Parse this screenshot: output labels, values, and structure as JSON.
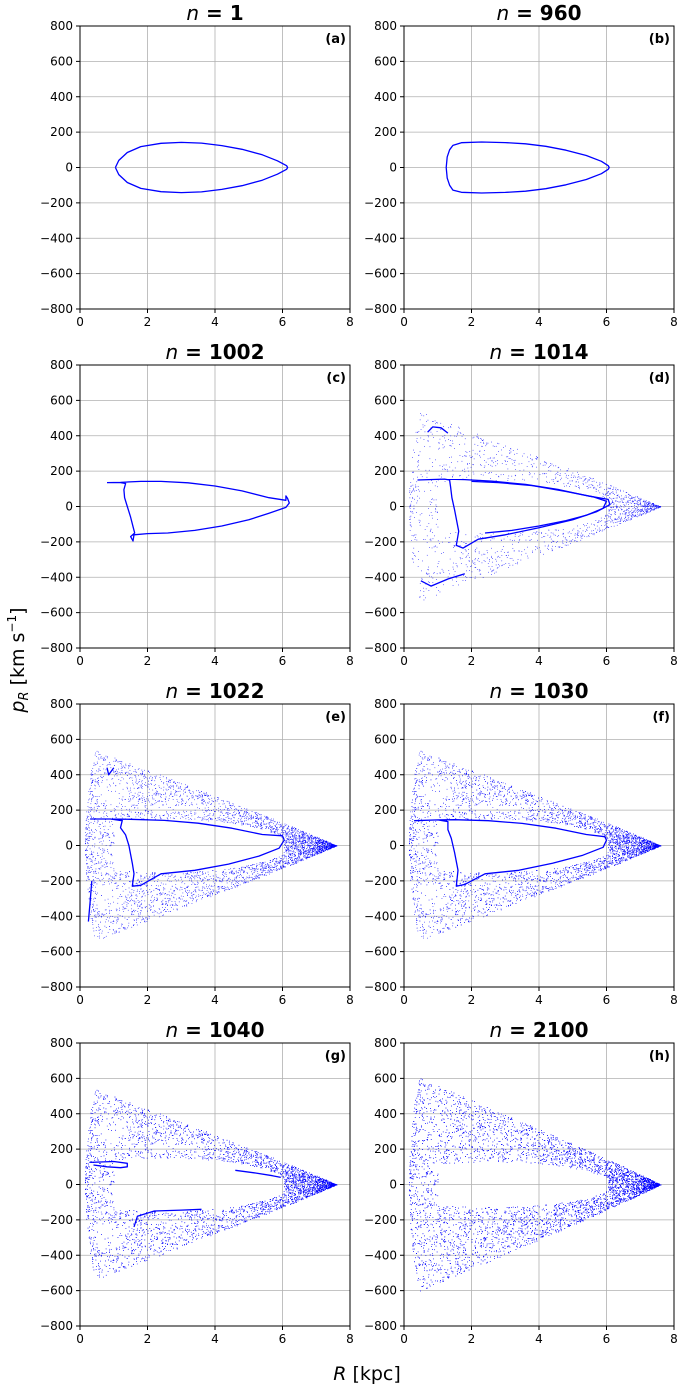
{
  "figure": {
    "xlabel_math": "R",
    "xlabel_unit": " [kpc]",
    "ylabel_math": "p",
    "ylabel_sub": "R",
    "ylabel_unit_main": " [km s",
    "ylabel_unit_sup": "−1",
    "ylabel_unit_end": "]",
    "title_var": "n",
    "title_eq": " = ",
    "line_color": "#0000ff",
    "grid_color": "#b0b0b0"
  },
  "chart_data": [
    {
      "type": "scatter",
      "tag": "(a)",
      "n": "1",
      "xlim": [
        0,
        8
      ],
      "ylim": [
        -800,
        800
      ],
      "xticks": [
        "0",
        "2",
        "4",
        "6",
        "8"
      ],
      "yticks": [
        "800",
        "600",
        "400",
        "200",
        "0",
        "−200",
        "−400",
        "−600",
        "−800"
      ],
      "grid": true,
      "curves": [
        {
          "style": "line",
          "points": [
            [
              1.05,
              0
            ],
            [
              1.15,
              40
            ],
            [
              1.4,
              85
            ],
            [
              1.8,
              118
            ],
            [
              2.4,
              137
            ],
            [
              3.0,
              142
            ],
            [
              3.6,
              138
            ],
            [
              4.2,
              124
            ],
            [
              4.8,
              103
            ],
            [
              5.4,
              72
            ],
            [
              5.85,
              38
            ],
            [
              6.12,
              10
            ],
            [
              6.15,
              0
            ],
            [
              6.12,
              -10
            ],
            [
              5.85,
              -38
            ],
            [
              5.4,
              -72
            ],
            [
              4.8,
              -103
            ],
            [
              4.2,
              -124
            ],
            [
              3.6,
              -138
            ],
            [
              3.0,
              -142
            ],
            [
              2.4,
              -137
            ],
            [
              1.8,
              -118
            ],
            [
              1.4,
              -85
            ],
            [
              1.15,
              -40
            ],
            [
              1.05,
              0
            ]
          ]
        }
      ],
      "clouds": []
    },
    {
      "type": "scatter",
      "tag": "(b)",
      "n": "960",
      "xlim": [
        0,
        8
      ],
      "ylim": [
        -800,
        800
      ],
      "xticks": [
        "0",
        "2",
        "4",
        "6",
        "8"
      ],
      "yticks": [
        "800",
        "600",
        "400",
        "200",
        "0",
        "−200",
        "−400",
        "−600",
        "−800"
      ],
      "grid": true,
      "curves": [
        {
          "style": "line",
          "points": [
            [
              1.25,
              0
            ],
            [
              1.28,
              60
            ],
            [
              1.35,
              100
            ],
            [
              1.45,
              125
            ],
            [
              1.7,
              140
            ],
            [
              2.3,
              144
            ],
            [
              3.0,
              141
            ],
            [
              3.6,
              134
            ],
            [
              4.2,
              120
            ],
            [
              4.8,
              98
            ],
            [
              5.4,
              68
            ],
            [
              5.85,
              35
            ],
            [
              6.05,
              10
            ],
            [
              6.08,
              0
            ],
            [
              6.05,
              -10
            ],
            [
              5.85,
              -35
            ],
            [
              5.4,
              -68
            ],
            [
              4.8,
              -98
            ],
            [
              4.2,
              -120
            ],
            [
              3.6,
              -134
            ],
            [
              3.0,
              -141
            ],
            [
              2.3,
              -144
            ],
            [
              1.7,
              -140
            ],
            [
              1.45,
              -128
            ],
            [
              1.35,
              -100
            ],
            [
              1.28,
              -60
            ],
            [
              1.25,
              0
            ]
          ]
        }
      ],
      "clouds": []
    },
    {
      "type": "scatter",
      "tag": "(c)",
      "n": "1002",
      "xlim": [
        0,
        8
      ],
      "ylim": [
        -800,
        800
      ],
      "xticks": [
        "0",
        "2",
        "4",
        "6",
        "8"
      ],
      "yticks": [
        "800",
        "600",
        "400",
        "200",
        "0",
        "−200",
        "−400",
        "−600",
        "−800"
      ],
      "grid": true,
      "curves": [
        {
          "style": "line",
          "points": [
            [
              0.8,
              135
            ],
            [
              1.2,
              135
            ],
            [
              1.35,
              130
            ],
            [
              1.3,
              95
            ],
            [
              1.32,
              50
            ],
            [
              1.4,
              0
            ],
            [
              1.5,
              -60
            ],
            [
              1.58,
              -120
            ],
            [
              1.62,
              -150
            ],
            [
              1.5,
              -170
            ],
            [
              1.57,
              -195
            ],
            [
              1.6,
              -160
            ],
            [
              2.0,
              -153
            ],
            [
              2.6,
              -150
            ],
            [
              3.4,
              -135
            ],
            [
              4.2,
              -110
            ],
            [
              5.0,
              -75
            ],
            [
              5.6,
              -38
            ],
            [
              6.1,
              -5
            ],
            [
              6.2,
              20
            ],
            [
              6.15,
              45
            ],
            [
              6.1,
              60
            ],
            [
              6.1,
              35
            ],
            [
              5.6,
              50
            ],
            [
              4.8,
              88
            ],
            [
              4.0,
              116
            ],
            [
              3.2,
              134
            ],
            [
              2.4,
              142
            ],
            [
              1.8,
              142
            ],
            [
              1.35,
              138
            ],
            [
              1.2,
              136
            ],
            [
              0.8,
              135
            ]
          ]
        }
      ],
      "clouds": []
    },
    {
      "type": "scatter",
      "tag": "(d)",
      "n": "1014",
      "xlim": [
        0,
        8
      ],
      "ylim": [
        -800,
        800
      ],
      "xticks": [
        "0",
        "2",
        "4",
        "6",
        "8"
      ],
      "yticks": [
        "800",
        "600",
        "400",
        "200",
        "0",
        "−200",
        "−400",
        "−600",
        "−800"
      ],
      "grid": true,
      "curves": [
        {
          "style": "line",
          "points": [
            [
              0.4,
              150
            ],
            [
              1.2,
              155
            ],
            [
              1.35,
              150
            ],
            [
              1.38,
              110
            ],
            [
              1.42,
              50
            ],
            [
              1.5,
              -20
            ],
            [
              1.62,
              -140
            ],
            [
              1.55,
              -220
            ],
            [
              1.75,
              -235
            ],
            [
              2.2,
              -185
            ],
            [
              3.0,
              -160
            ],
            [
              4.0,
              -120
            ],
            [
              5.0,
              -75
            ],
            [
              5.7,
              -30
            ],
            [
              6.1,
              10
            ],
            [
              6.05,
              40
            ],
            [
              5.5,
              58
            ],
            [
              4.6,
              95
            ],
            [
              3.6,
              125
            ],
            [
              2.6,
              143
            ],
            [
              1.8,
              152
            ],
            [
              1.2,
              155
            ]
          ]
        },
        {
          "style": "line",
          "points": [
            [
              2.4,
              -150
            ],
            [
              3.2,
              -135
            ],
            [
              4.0,
              -110
            ],
            [
              4.8,
              -80
            ],
            [
              5.4,
              -50
            ],
            [
              5.9,
              -10
            ],
            [
              6.0,
              30
            ],
            [
              5.6,
              55
            ],
            [
              4.8,
              85
            ],
            [
              3.8,
              118
            ],
            [
              2.8,
              135
            ],
            [
              2.0,
              142
            ]
          ]
        },
        {
          "style": "line",
          "points": [
            [
              0.5,
              -420
            ],
            [
              0.8,
              -450
            ],
            [
              1.3,
              -410
            ],
            [
              1.8,
              -380
            ]
          ]
        },
        {
          "style": "line",
          "points": [
            [
              0.7,
              420
            ],
            [
              0.85,
              450
            ],
            [
              1.1,
              445
            ],
            [
              1.3,
              415
            ]
          ]
        }
      ],
      "clouds": [
        {
          "r_in": 1.0,
          "r_out": 1.9,
          "density": 1300,
          "chaos": 0.35
        },
        {
          "r_in": 0.6,
          "r_out": 0.95,
          "density": 250,
          "chaos": 0.25
        }
      ]
    },
    {
      "type": "scatter",
      "tag": "(e)",
      "n": "1022",
      "xlim": [
        0,
        8
      ],
      "ylim": [
        -800,
        800
      ],
      "xticks": [
        "0",
        "2",
        "4",
        "6",
        "8"
      ],
      "yticks": [
        "800",
        "600",
        "400",
        "200",
        "0",
        "−200",
        "−400",
        "−600",
        "−800"
      ],
      "grid": true,
      "curves": [
        {
          "style": "line",
          "points": [
            [
              0.3,
              150
            ],
            [
              0.9,
              150
            ],
            [
              1.25,
              140
            ],
            [
              1.2,
              100
            ],
            [
              1.35,
              60
            ],
            [
              1.45,
              0
            ],
            [
              1.55,
              -100
            ],
            [
              1.6,
              -160
            ],
            [
              1.55,
              -230
            ],
            [
              1.8,
              -225
            ],
            [
              2.4,
              -160
            ],
            [
              3.4,
              -140
            ],
            [
              4.4,
              -105
            ],
            [
              5.3,
              -60
            ],
            [
              5.9,
              -15
            ],
            [
              6.05,
              30
            ],
            [
              6.0,
              55
            ],
            [
              5.4,
              62
            ],
            [
              4.5,
              98
            ],
            [
              3.5,
              126
            ],
            [
              2.5,
              142
            ],
            [
              1.5,
              148
            ],
            [
              0.9,
              150
            ]
          ]
        },
        {
          "style": "line",
          "points": [
            [
              0.25,
              -430
            ],
            [
              0.3,
              -320
            ],
            [
              0.35,
              -200
            ]
          ]
        },
        {
          "style": "line",
          "points": [
            [
              0.8,
              440
            ],
            [
              0.85,
              400
            ],
            [
              1.0,
              440
            ]
          ]
        }
      ],
      "clouds": [
        {
          "r_in": 1.0,
          "r_out": 2.0,
          "density": 4200,
          "chaos": 0.45
        }
      ]
    },
    {
      "type": "scatter",
      "tag": "(f)",
      "n": "1030",
      "xlim": [
        0,
        8
      ],
      "ylim": [
        -800,
        800
      ],
      "xticks": [
        "0",
        "2",
        "4",
        "6",
        "8"
      ],
      "yticks": [
        "800",
        "600",
        "400",
        "200",
        "0",
        "−200",
        "−400",
        "−600",
        "−800"
      ],
      "grid": true,
      "curves": [
        {
          "style": "line",
          "points": [
            [
              0.3,
              140
            ],
            [
              1.0,
              145
            ],
            [
              1.3,
              135
            ],
            [
              1.3,
              90
            ],
            [
              1.4,
              40
            ],
            [
              1.5,
              -40
            ],
            [
              1.6,
              -140
            ],
            [
              1.55,
              -230
            ],
            [
              1.8,
              -220
            ],
            [
              2.4,
              -160
            ],
            [
              3.4,
              -140
            ],
            [
              4.4,
              -100
            ],
            [
              5.3,
              -55
            ],
            [
              5.9,
              -10
            ],
            [
              6.0,
              30
            ],
            [
              5.95,
              50
            ],
            [
              5.4,
              62
            ],
            [
              4.5,
              98
            ],
            [
              3.5,
              125
            ],
            [
              2.5,
              140
            ],
            [
              1.5,
              146
            ],
            [
              1.0,
              145
            ]
          ]
        }
      ],
      "clouds": [
        {
          "r_in": 1.0,
          "r_out": 2.05,
          "density": 5200,
          "chaos": 0.5
        }
      ]
    },
    {
      "type": "scatter",
      "tag": "(g)",
      "n": "1040",
      "xlim": [
        0,
        8
      ],
      "ylim": [
        -800,
        800
      ],
      "xticks": [
        "0",
        "2",
        "4",
        "6",
        "8"
      ],
      "yticks": [
        "800",
        "600",
        "400",
        "200",
        "0",
        "−200",
        "−400",
        "−600",
        "−800"
      ],
      "grid": true,
      "curves": [
        {
          "style": "line",
          "points": [
            [
              0.3,
              125
            ],
            [
              1.0,
              130
            ],
            [
              1.4,
              120
            ],
            [
              1.4,
              100
            ],
            [
              1.2,
              95
            ],
            [
              0.8,
              100
            ],
            [
              0.4,
              110
            ]
          ]
        },
        {
          "style": "line",
          "points": [
            [
              1.6,
              -240
            ],
            [
              1.7,
              -180
            ],
            [
              2.2,
              -150
            ],
            [
              3.0,
              -145
            ],
            [
              3.6,
              -140
            ]
          ]
        },
        {
          "style": "line",
          "points": [
            [
              4.6,
              80
            ],
            [
              5.2,
              65
            ],
            [
              5.7,
              50
            ],
            [
              5.95,
              40
            ]
          ]
        }
      ],
      "clouds": [
        {
          "r_in": 1.0,
          "r_out": 2.15,
          "density": 6500,
          "chaos": 0.6
        }
      ]
    },
    {
      "type": "scatter",
      "tag": "(h)",
      "n": "2100",
      "xlim": [
        0,
        8
      ],
      "ylim": [
        -800,
        800
      ],
      "xticks": [
        "0",
        "2",
        "4",
        "6",
        "8"
      ],
      "yticks": [
        "800",
        "600",
        "400",
        "200",
        "0",
        "−200",
        "−400",
        "−600",
        "−800"
      ],
      "grid": true,
      "curves": [],
      "clouds": [
        {
          "r_in": 1.0,
          "r_out": 2.3,
          "density": 9000,
          "chaos": 0.8
        }
      ]
    }
  ]
}
